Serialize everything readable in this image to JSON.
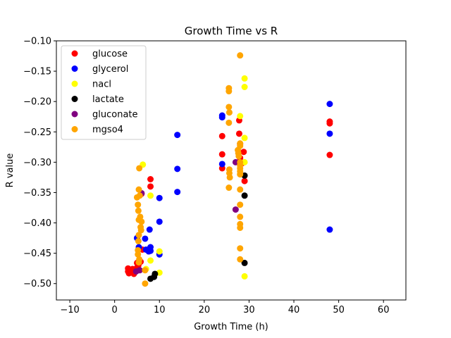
{
  "chart_data": {
    "type": "scatter",
    "title": "Growth Time vs R",
    "xlabel": "Growth Time (h)",
    "ylabel": "R value",
    "xlim": [
      -13,
      65
    ],
    "ylim": [
      -0.527,
      -0.1
    ],
    "xticks": [
      -10,
      0,
      10,
      20,
      30,
      40,
      50,
      60
    ],
    "yticks": [
      -0.5,
      -0.45,
      -0.4,
      -0.35,
      -0.3,
      -0.25,
      -0.2,
      -0.15,
      -0.1
    ],
    "xtick_labels": [
      "−10",
      "0",
      "10",
      "20",
      "30",
      "40",
      "50",
      "60"
    ],
    "ytick_labels": [
      "−0.50",
      "−0.45",
      "−0.40",
      "−0.35",
      "−0.30",
      "−0.25",
      "−0.20",
      "−0.15",
      "−0.10"
    ],
    "legend_position": "top-left",
    "grid": false,
    "series": [
      {
        "name": "glucose",
        "color": "#ff0000",
        "points": [
          [
            3,
            -0.475
          ],
          [
            3,
            -0.48
          ],
          [
            3.2,
            -0.483
          ],
          [
            3.5,
            -0.478
          ],
          [
            4,
            -0.482
          ],
          [
            4,
            -0.476
          ],
          [
            4.3,
            -0.484
          ],
          [
            4.6,
            -0.478
          ],
          [
            5,
            -0.474
          ],
          [
            5,
            -0.466
          ],
          [
            5.3,
            -0.47
          ],
          [
            5.8,
            -0.464
          ],
          [
            6,
            -0.352
          ],
          [
            6.2,
            -0.444
          ],
          [
            8,
            -0.328
          ],
          [
            8,
            -0.34
          ],
          [
            24,
            -0.257
          ],
          [
            24,
            -0.287
          ],
          [
            24,
            -0.31
          ],
          [
            27.8,
            -0.231
          ],
          [
            27.8,
            -0.253
          ],
          [
            28,
            -0.27
          ],
          [
            28,
            -0.293
          ],
          [
            28.4,
            -0.302
          ],
          [
            28.8,
            -0.283
          ],
          [
            29,
            -0.331
          ],
          [
            48,
            -0.233
          ],
          [
            48,
            -0.236
          ],
          [
            48,
            -0.288
          ]
        ]
      },
      {
        "name": "glycerol",
        "color": "#0000ff",
        "points": [
          [
            5,
            -0.425
          ],
          [
            5.4,
            -0.44
          ],
          [
            6.8,
            -0.426
          ],
          [
            7,
            -0.444
          ],
          [
            7.6,
            -0.447
          ],
          [
            7.8,
            -0.411
          ],
          [
            8,
            -0.44
          ],
          [
            8,
            -0.446
          ],
          [
            10,
            -0.452
          ],
          [
            10,
            -0.398
          ],
          [
            10,
            -0.359
          ],
          [
            14,
            -0.255
          ],
          [
            14,
            -0.311
          ],
          [
            14,
            -0.349
          ],
          [
            24,
            -0.223
          ],
          [
            24,
            -0.226
          ],
          [
            24,
            -0.303
          ],
          [
            48,
            -0.204
          ],
          [
            48,
            -0.253
          ],
          [
            48,
            -0.411
          ]
        ]
      },
      {
        "name": "nacl",
        "color": "#ffff00",
        "points": [
          [
            6.3,
            -0.304
          ],
          [
            7,
            -0.476
          ],
          [
            8,
            -0.355
          ],
          [
            8,
            -0.462
          ],
          [
            10,
            -0.447
          ],
          [
            10,
            -0.482
          ],
          [
            28,
            -0.224
          ],
          [
            29,
            -0.162
          ],
          [
            29,
            -0.176
          ],
          [
            29,
            -0.26
          ],
          [
            29,
            -0.3
          ],
          [
            29,
            -0.488
          ]
        ]
      },
      {
        "name": "lactate",
        "color": "#000000",
        "points": [
          [
            8,
            -0.492
          ],
          [
            8.8,
            -0.489
          ],
          [
            9,
            -0.484
          ],
          [
            29,
            -0.322
          ],
          [
            29,
            -0.355
          ],
          [
            29,
            -0.466
          ]
        ]
      },
      {
        "name": "gluconate",
        "color": "#800080",
        "points": [
          [
            4.8,
            -0.48
          ],
          [
            5.6,
            -0.478
          ],
          [
            6,
            -0.351
          ],
          [
            27,
            -0.3
          ],
          [
            27,
            -0.378
          ]
        ]
      },
      {
        "name": "mgso4",
        "color": "#ffa500",
        "points": [
          [
            5,
            -0.358
          ],
          [
            5.2,
            -0.37
          ],
          [
            5.3,
            -0.38
          ],
          [
            5.4,
            -0.395
          ],
          [
            5.5,
            -0.31
          ],
          [
            5.4,
            -0.345
          ],
          [
            5.4,
            -0.42
          ],
          [
            5.3,
            -0.43
          ],
          [
            5.2,
            -0.445
          ],
          [
            5.2,
            -0.452
          ],
          [
            5.4,
            -0.465
          ],
          [
            5.5,
            -0.46
          ],
          [
            5.6,
            -0.355
          ],
          [
            5.7,
            -0.39
          ],
          [
            5.8,
            -0.407
          ],
          [
            5.9,
            -0.412
          ],
          [
            6,
            -0.398
          ],
          [
            6.8,
            -0.478
          ],
          [
            6.8,
            -0.5
          ],
          [
            25.5,
            -0.178
          ],
          [
            25.5,
            -0.183
          ],
          [
            25.5,
            -0.209
          ],
          [
            25.6,
            -0.218
          ],
          [
            25.5,
            -0.235
          ],
          [
            25.6,
            -0.312
          ],
          [
            25.6,
            -0.318
          ],
          [
            25.7,
            -0.325
          ],
          [
            25.5,
            -0.342
          ],
          [
            27.5,
            -0.28
          ],
          [
            27.6,
            -0.285
          ],
          [
            27.7,
            -0.29
          ],
          [
            28,
            -0.124
          ],
          [
            28,
            -0.269
          ],
          [
            28,
            -0.273
          ],
          [
            28,
            -0.3
          ],
          [
            28,
            -0.305
          ],
          [
            28,
            -0.31
          ],
          [
            28,
            -0.315
          ],
          [
            28,
            -0.32
          ],
          [
            28,
            -0.345
          ],
          [
            28,
            -0.37
          ],
          [
            28,
            -0.39
          ],
          [
            28,
            -0.402
          ],
          [
            28,
            -0.408
          ],
          [
            28,
            -0.442
          ],
          [
            28,
            -0.46
          ]
        ]
      }
    ]
  }
}
